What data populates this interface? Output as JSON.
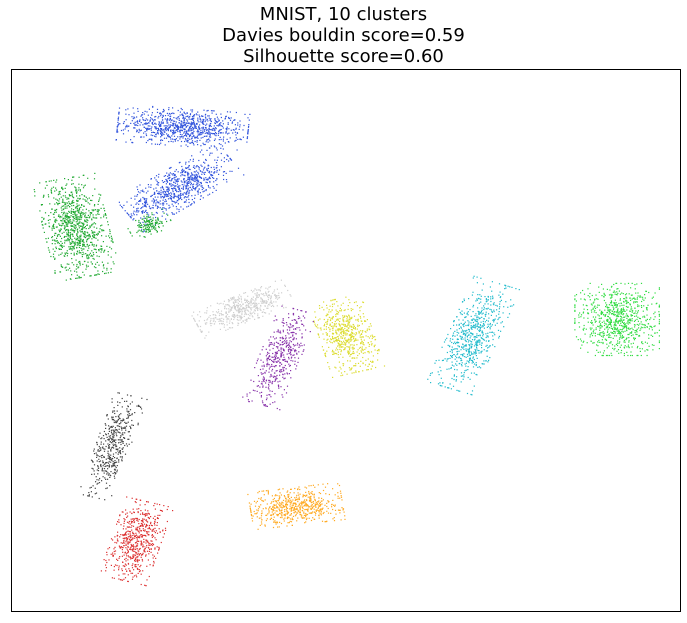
{
  "title_lines": [
    "MNIST, 10 clusters",
    "Davies bouldin score=0.59",
    "Silhouette score=0.60"
  ],
  "chart_data": {
    "type": "scatter",
    "title": "MNIST, 10 clusters\nDavies bouldin score=0.59\nSilhouette score=0.60",
    "xlabel": "",
    "ylabel": "",
    "axes_ticks": "none",
    "grid": false,
    "legend": "none",
    "xlim": [
      0,
      100
    ],
    "ylim": [
      0,
      100
    ],
    "clusters": [
      {
        "id": 0,
        "color": "#3355dd",
        "center": [
          25.5,
          89.5
        ],
        "spread": [
          8.5,
          3.0
        ],
        "angle": -5,
        "count": 900
      },
      {
        "id": 1,
        "color": "#3355dd",
        "center": [
          25.0,
          78.5
        ],
        "spread": [
          8.0,
          3.2
        ],
        "angle": 35,
        "count": 750
      },
      {
        "id": 2,
        "color": "#22aa33",
        "center": [
          9.5,
          71.0
        ],
        "spread": [
          4.2,
          8.0
        ],
        "angle": 12,
        "count": 950
      },
      {
        "id": 3,
        "color": "#22aa33",
        "center": [
          20.5,
          71.5
        ],
        "spread": [
          2.8,
          1.6
        ],
        "angle": 25,
        "count": 140
      },
      {
        "id": 4,
        "color": "#d0d0d0",
        "center": [
          34.5,
          56.0
        ],
        "spread": [
          6.5,
          2.2
        ],
        "angle": 25,
        "count": 500
      },
      {
        "id": 5,
        "color": "#dddd33",
        "center": [
          50.0,
          51.0
        ],
        "spread": [
          3.5,
          6.0
        ],
        "angle": 15,
        "count": 600
      },
      {
        "id": 6,
        "color": "#8833aa",
        "center": [
          40.0,
          47.0
        ],
        "spread": [
          2.6,
          8.0
        ],
        "angle": -18,
        "count": 450
      },
      {
        "id": 7,
        "color": "#22bbcc",
        "center": [
          69.0,
          51.0
        ],
        "spread": [
          3.2,
          9.0
        ],
        "angle": -20,
        "count": 650
      },
      {
        "id": 8,
        "color": "#33dd44",
        "center": [
          90.5,
          54.0
        ],
        "spread": [
          5.5,
          5.8
        ],
        "angle": 0,
        "count": 800
      },
      {
        "id": 9,
        "color": "#444444",
        "center": [
          15.0,
          30.5
        ],
        "spread": [
          2.2,
          8.5
        ],
        "angle": -16,
        "count": 450
      },
      {
        "id": 10,
        "color": "#dd3333",
        "center": [
          18.5,
          13.0
        ],
        "spread": [
          3.2,
          6.5
        ],
        "angle": -16,
        "count": 600
      },
      {
        "id": 11,
        "color": "#ffaa22",
        "center": [
          42.5,
          19.5
        ],
        "spread": [
          6.0,
          3.0
        ],
        "angle": 8,
        "count": 600
      }
    ]
  }
}
